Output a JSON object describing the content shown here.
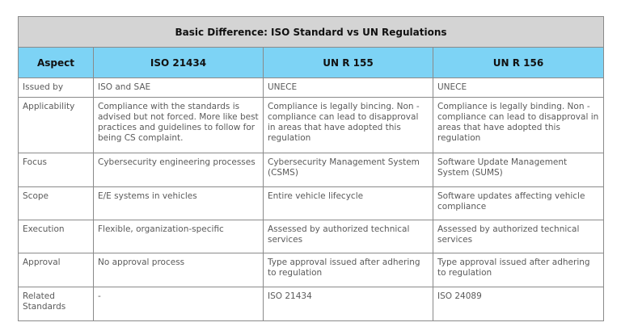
{
  "table": {
    "title": "Basic Difference: ISO Standard vs UN Regulations",
    "header": [
      "Aspect",
      "ISO 21434",
      "UN R 155",
      "UN R 156"
    ],
    "rows": [
      [
        "Issued by",
        "ISO and SAE",
        "UNECE",
        "UNECE"
      ],
      [
        "Applicability",
        "Compliance with the standards is advised but not forced. More like best practices and guidelines to follow for being CS complaint.",
        "Compliance is legally bincing. Non - compliance can lead to disapproval in areas that have adopted this regulation",
        "Compliance is legally binding. Non - compliance can lead to disapproval in areas that have adopted this regulation"
      ],
      [
        "Focus",
        "Cybersecurity engineering processes",
        "Cybersecurity Management System (CSMS)",
        "Software Update Management System (SUMS)"
      ],
      [
        "Scope",
        "E/E systems in vehicles",
        "Entire vehicle lifecycle",
        "Software updates affecting vehicle compliance"
      ],
      [
        "Execution",
        "Flexible, organization-specific",
        "Assessed by authorized technical services",
        "Assessed by authorized technical services"
      ],
      [
        "Approval",
        "No approval process",
        "Type approval issued after adhering to regulation",
        "Type approval issued after adhering to regulation"
      ],
      [
        "Related Standards",
        "-",
        "ISO 21434",
        "ISO 24089"
      ]
    ]
  }
}
